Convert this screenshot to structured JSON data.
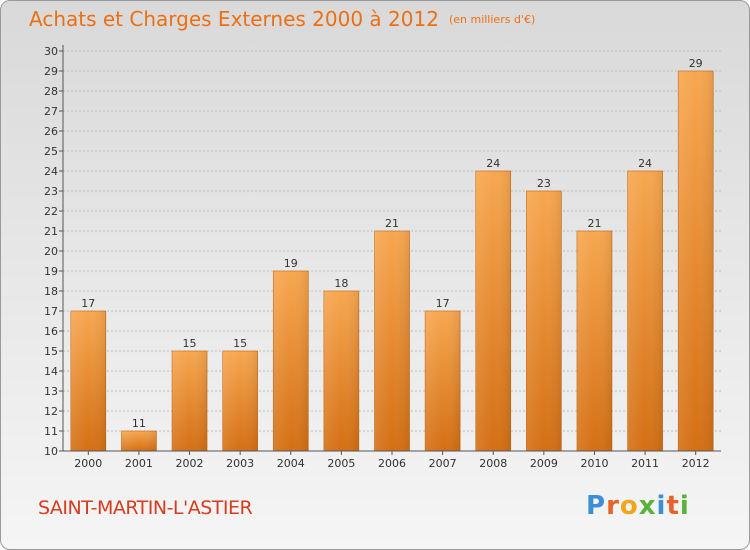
{
  "header": {
    "title": "Achats et Charges Externes 2000 à 2012",
    "unit": "(en milliers d'€)"
  },
  "footer": {
    "commune": "SAINT-MARTIN-L'ASTIER",
    "brand_letters": [
      "P",
      "r",
      "o",
      "x",
      "i",
      "t",
      "i"
    ],
    "brand_colors": [
      "#3b8fd6",
      "#e8622a",
      "#f2a51a",
      "#5cb13a",
      "#3b8fd6",
      "#e8622a",
      "#5cb13a"
    ]
  },
  "colors": {
    "title": "#ee6f12",
    "bar_top": "#f7a750",
    "bar_bottom": "#d46f14",
    "commune": "#d63c1e"
  },
  "chart_data": {
    "type": "bar",
    "title": "Achats et Charges Externes 2000 à 2012",
    "subtitle": "(en milliers d'€)",
    "categories": [
      "2000",
      "2001",
      "2002",
      "2003",
      "2004",
      "2005",
      "2006",
      "2007",
      "2008",
      "2009",
      "2010",
      "2011",
      "2012"
    ],
    "values": [
      17,
      11,
      15,
      15,
      19,
      18,
      21,
      17,
      24,
      23,
      21,
      24,
      29
    ],
    "ylim": [
      10,
      30
    ],
    "yticks": [
      10,
      11,
      12,
      13,
      14,
      15,
      16,
      17,
      18,
      19,
      20,
      21,
      22,
      23,
      24,
      25,
      26,
      27,
      28,
      29,
      30
    ],
    "grid": true,
    "data_labels": true
  }
}
